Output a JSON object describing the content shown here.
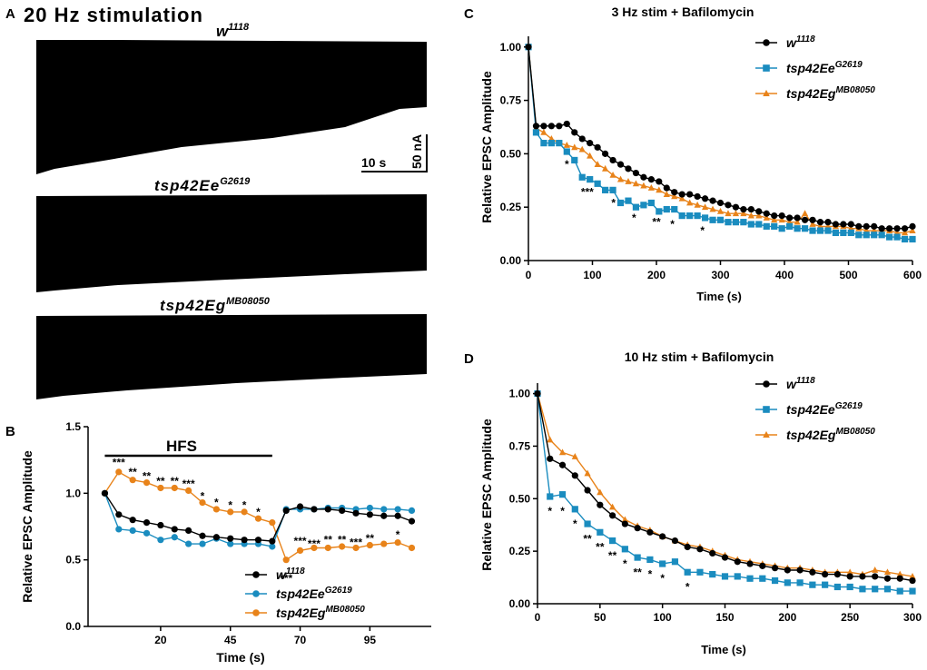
{
  "colors": {
    "w1118": "#000000",
    "tsp42Ee": "#1a8cbf",
    "tsp42Eg": "#e8831a",
    "trace": "#000000"
  },
  "panelA": {
    "letter": "A",
    "title": "20 Hz stimulation",
    "traces": [
      {
        "base": "w",
        "sup": "1118"
      },
      {
        "base": "tsp42Ee",
        "sup": "G2619"
      },
      {
        "base": "tsp42Eg",
        "sup": "MB08050"
      }
    ],
    "scalebar": {
      "time": "10 s",
      "amp": "50 nA"
    }
  },
  "chart_data": [
    {
      "id": "B",
      "letter": "B",
      "type": "line",
      "title": "",
      "annotation": "HFS",
      "hfs_range": [
        0,
        60
      ],
      "xlabel": "Time (s)",
      "ylabel": "Relative EPSC Amplitude",
      "xlim": [
        -6,
        117
      ],
      "ylim": [
        0,
        1.5
      ],
      "xticks": [
        20,
        45,
        70,
        95
      ],
      "yticks": [
        0.0,
        0.5,
        1.0,
        1.5
      ],
      "ytick_labels": [
        "0.0",
        "0.5",
        "1.0",
        "1.5"
      ],
      "legend": "bottom-right",
      "series": [
        {
          "name": "w",
          "sup": "1118",
          "color": "#000000",
          "marker": "circle",
          "x": [
            0,
            5,
            10,
            15,
            20,
            25,
            30,
            35,
            40,
            45,
            50,
            55,
            60,
            65,
            70,
            75,
            80,
            85,
            90,
            95,
            100,
            105,
            110
          ],
          "y": [
            1.0,
            0.84,
            0.8,
            0.78,
            0.76,
            0.73,
            0.72,
            0.68,
            0.67,
            0.66,
            0.65,
            0.65,
            0.64,
            0.87,
            0.9,
            0.88,
            0.88,
            0.87,
            0.85,
            0.84,
            0.83,
            0.83,
            0.79
          ]
        },
        {
          "name": "tsp42Ee",
          "sup": "G2619",
          "color": "#1a8cbf",
          "marker": "circle",
          "x": [
            0,
            5,
            10,
            15,
            20,
            25,
            30,
            35,
            40,
            45,
            50,
            55,
            60,
            65,
            70,
            75,
            80,
            85,
            90,
            95,
            100,
            105,
            110
          ],
          "y": [
            1.0,
            0.73,
            0.72,
            0.7,
            0.65,
            0.67,
            0.62,
            0.62,
            0.66,
            0.62,
            0.62,
            0.62,
            0.6,
            0.88,
            0.88,
            0.88,
            0.89,
            0.89,
            0.88,
            0.89,
            0.88,
            0.88,
            0.87
          ]
        },
        {
          "name": "tsp42Eg",
          "sup": "MB08050",
          "color": "#e8831a",
          "marker": "circle",
          "x": [
            0,
            5,
            10,
            15,
            20,
            25,
            30,
            35,
            40,
            45,
            50,
            55,
            60,
            65,
            70,
            75,
            80,
            85,
            90,
            95,
            100,
            105,
            110
          ],
          "y": [
            1.0,
            1.16,
            1.1,
            1.08,
            1.04,
            1.04,
            1.02,
            0.93,
            0.88,
            0.86,
            0.86,
            0.81,
            0.78,
            0.5,
            0.57,
            0.59,
            0.59,
            0.6,
            0.59,
            0.61,
            0.62,
            0.63,
            0.59
          ]
        }
      ],
      "significance": [
        {
          "x": 5,
          "y": 1.23,
          "text": "***"
        },
        {
          "x": 10,
          "y": 1.16,
          "text": "**"
        },
        {
          "x": 15,
          "y": 1.13,
          "text": "**"
        },
        {
          "x": 20,
          "y": 1.09,
          "text": "**"
        },
        {
          "x": 25,
          "y": 1.09,
          "text": "**"
        },
        {
          "x": 30,
          "y": 1.07,
          "text": "***"
        },
        {
          "x": 35,
          "y": 0.98,
          "text": "*"
        },
        {
          "x": 40,
          "y": 0.93,
          "text": "*"
        },
        {
          "x": 45,
          "y": 0.91,
          "text": "*"
        },
        {
          "x": 50,
          "y": 0.91,
          "text": "*"
        },
        {
          "x": 55,
          "y": 0.86,
          "text": "*"
        },
        {
          "x": 65,
          "y": 0.36,
          "text": "***"
        },
        {
          "x": 70,
          "y": 0.64,
          "text": "***"
        },
        {
          "x": 75,
          "y": 0.62,
          "text": "***"
        },
        {
          "x": 80,
          "y": 0.65,
          "text": "**"
        },
        {
          "x": 85,
          "y": 0.65,
          "text": "**"
        },
        {
          "x": 90,
          "y": 0.63,
          "text": "***"
        },
        {
          "x": 95,
          "y": 0.66,
          "text": "**"
        },
        {
          "x": 105,
          "y": 0.69,
          "text": "*"
        }
      ]
    },
    {
      "id": "C",
      "letter": "C",
      "type": "line",
      "title": "3 Hz stim + Bafilomycin",
      "xlabel": "Time (s)",
      "ylabel": "Relative EPSC Amplitude",
      "xlim": [
        0,
        600
      ],
      "ylim": [
        0,
        1.05
      ],
      "xticks": [
        0,
        100,
        200,
        300,
        400,
        500,
        600
      ],
      "yticks": [
        0.0,
        0.25,
        0.5,
        0.75,
        1.0
      ],
      "ytick_labels": [
        "0.00",
        "0.25",
        "0.50",
        "0.75",
        "1.00"
      ],
      "legend": "top-right",
      "series": [
        {
          "name": "w",
          "sup": "1118",
          "color": "#000000",
          "marker": "circle",
          "x": [
            0,
            12,
            24,
            36,
            48,
            60,
            72,
            84,
            96,
            108,
            120,
            132,
            144,
            156,
            168,
            180,
            192,
            204,
            216,
            228,
            240,
            252,
            264,
            276,
            288,
            300,
            312,
            324,
            336,
            348,
            360,
            372,
            384,
            396,
            408,
            420,
            432,
            444,
            456,
            468,
            480,
            492,
            504,
            516,
            528,
            540,
            552,
            564,
            576,
            588,
            600
          ],
          "y": [
            1.0,
            0.63,
            0.63,
            0.63,
            0.63,
            0.64,
            0.6,
            0.57,
            0.55,
            0.53,
            0.5,
            0.47,
            0.45,
            0.43,
            0.41,
            0.39,
            0.38,
            0.37,
            0.34,
            0.32,
            0.31,
            0.31,
            0.3,
            0.29,
            0.28,
            0.27,
            0.26,
            0.25,
            0.24,
            0.24,
            0.23,
            0.22,
            0.21,
            0.21,
            0.2,
            0.2,
            0.19,
            0.19,
            0.18,
            0.18,
            0.17,
            0.17,
            0.17,
            0.16,
            0.16,
            0.16,
            0.15,
            0.15,
            0.15,
            0.15,
            0.16
          ]
        },
        {
          "name": "tsp42Ee",
          "sup": "G2619",
          "color": "#1a8cbf",
          "marker": "square",
          "x": [
            0,
            12,
            24,
            36,
            48,
            60,
            72,
            84,
            96,
            108,
            120,
            132,
            144,
            156,
            168,
            180,
            192,
            204,
            216,
            228,
            240,
            252,
            264,
            276,
            288,
            300,
            312,
            324,
            336,
            348,
            360,
            372,
            384,
            396,
            408,
            420,
            432,
            444,
            456,
            468,
            480,
            492,
            504,
            516,
            528,
            540,
            552,
            564,
            576,
            588,
            600
          ],
          "y": [
            1.0,
            0.6,
            0.55,
            0.55,
            0.55,
            0.51,
            0.47,
            0.39,
            0.38,
            0.36,
            0.33,
            0.33,
            0.27,
            0.28,
            0.25,
            0.26,
            0.27,
            0.23,
            0.24,
            0.24,
            0.21,
            0.21,
            0.21,
            0.2,
            0.19,
            0.19,
            0.18,
            0.18,
            0.18,
            0.17,
            0.17,
            0.16,
            0.16,
            0.15,
            0.16,
            0.15,
            0.15,
            0.14,
            0.14,
            0.14,
            0.13,
            0.13,
            0.13,
            0.12,
            0.12,
            0.12,
            0.12,
            0.11,
            0.11,
            0.1,
            0.1
          ]
        },
        {
          "name": "tsp42Eg",
          "sup": "MB08050",
          "color": "#e8831a",
          "marker": "triangle",
          "x": [
            0,
            12,
            24,
            36,
            48,
            60,
            72,
            84,
            96,
            108,
            120,
            132,
            144,
            156,
            168,
            180,
            192,
            204,
            216,
            228,
            240,
            252,
            264,
            276,
            288,
            300,
            312,
            324,
            336,
            348,
            360,
            372,
            384,
            396,
            408,
            420,
            432,
            444,
            456,
            468,
            480,
            492,
            504,
            516,
            528,
            540,
            552,
            564,
            576,
            588,
            600
          ],
          "y": [
            1.0,
            0.62,
            0.6,
            0.57,
            0.55,
            0.54,
            0.53,
            0.52,
            0.49,
            0.45,
            0.43,
            0.4,
            0.38,
            0.37,
            0.36,
            0.35,
            0.34,
            0.33,
            0.31,
            0.3,
            0.29,
            0.27,
            0.26,
            0.25,
            0.24,
            0.23,
            0.22,
            0.22,
            0.22,
            0.21,
            0.21,
            0.2,
            0.19,
            0.19,
            0.18,
            0.18,
            0.22,
            0.17,
            0.16,
            0.16,
            0.16,
            0.16,
            0.15,
            0.15,
            0.14,
            0.14,
            0.14,
            0.14,
            0.13,
            0.13,
            0.14
          ]
        }
      ],
      "significance": [
        {
          "x": 60,
          "y": 0.45,
          "text": "*"
        },
        {
          "x": 92,
          "y": 0.32,
          "text": "***"
        },
        {
          "x": 133,
          "y": 0.27,
          "text": "*"
        },
        {
          "x": 165,
          "y": 0.2,
          "text": "*"
        },
        {
          "x": 200,
          "y": 0.18,
          "text": "**"
        },
        {
          "x": 225,
          "y": 0.17,
          "text": "*"
        },
        {
          "x": 272,
          "y": 0.14,
          "text": "*"
        }
      ]
    },
    {
      "id": "D",
      "letter": "D",
      "type": "line",
      "title": "10 Hz stim + Bafilomycin",
      "xlabel": "Time (s)",
      "ylabel": "Relative EPSC Amplitude",
      "xlim": [
        0,
        300
      ],
      "ylim": [
        0,
        1.05
      ],
      "xticks": [
        0,
        50,
        100,
        150,
        200,
        250,
        300
      ],
      "yticks": [
        0.0,
        0.25,
        0.5,
        0.75,
        1.0
      ],
      "ytick_labels": [
        "0.00",
        "0.25",
        "0.50",
        "0.75",
        "1.00"
      ],
      "legend": "top-right",
      "series": [
        {
          "name": "w",
          "sup": "1118",
          "color": "#000000",
          "marker": "circle",
          "x": [
            0,
            10,
            20,
            30,
            40,
            50,
            60,
            70,
            80,
            90,
            100,
            110,
            120,
            130,
            140,
            150,
            160,
            170,
            180,
            190,
            200,
            210,
            220,
            230,
            240,
            250,
            260,
            270,
            280,
            290,
            300
          ],
          "y": [
            1.0,
            0.69,
            0.66,
            0.61,
            0.54,
            0.47,
            0.42,
            0.38,
            0.36,
            0.34,
            0.32,
            0.3,
            0.27,
            0.26,
            0.24,
            0.22,
            0.2,
            0.19,
            0.18,
            0.17,
            0.16,
            0.16,
            0.15,
            0.14,
            0.14,
            0.13,
            0.13,
            0.13,
            0.12,
            0.12,
            0.11
          ]
        },
        {
          "name": "tsp42Ee",
          "sup": "G2619",
          "color": "#1a8cbf",
          "marker": "square",
          "x": [
            0,
            10,
            20,
            30,
            40,
            50,
            60,
            70,
            80,
            90,
            100,
            110,
            120,
            130,
            140,
            150,
            160,
            170,
            180,
            190,
            200,
            210,
            220,
            230,
            240,
            250,
            260,
            270,
            280,
            290,
            300
          ],
          "y": [
            1.0,
            0.51,
            0.52,
            0.45,
            0.38,
            0.34,
            0.3,
            0.26,
            0.22,
            0.21,
            0.19,
            0.2,
            0.15,
            0.15,
            0.14,
            0.13,
            0.13,
            0.12,
            0.12,
            0.11,
            0.1,
            0.1,
            0.09,
            0.09,
            0.08,
            0.08,
            0.07,
            0.07,
            0.07,
            0.06,
            0.06
          ]
        },
        {
          "name": "tsp42Eg",
          "sup": "MB08050",
          "color": "#e8831a",
          "marker": "triangle",
          "x": [
            0,
            10,
            20,
            30,
            40,
            50,
            60,
            70,
            80,
            90,
            100,
            110,
            120,
            130,
            140,
            150,
            160,
            170,
            180,
            190,
            200,
            210,
            220,
            230,
            240,
            250,
            260,
            270,
            280,
            290,
            300
          ],
          "y": [
            1.0,
            0.78,
            0.72,
            0.7,
            0.62,
            0.53,
            0.46,
            0.4,
            0.37,
            0.35,
            0.32,
            0.3,
            0.28,
            0.27,
            0.25,
            0.23,
            0.21,
            0.2,
            0.19,
            0.18,
            0.17,
            0.17,
            0.16,
            0.15,
            0.15,
            0.15,
            0.14,
            0.16,
            0.15,
            0.14,
            0.13
          ]
        }
      ],
      "significance": [
        {
          "x": 10,
          "y": 0.44,
          "text": "*"
        },
        {
          "x": 20,
          "y": 0.44,
          "text": "*"
        },
        {
          "x": 30,
          "y": 0.38,
          "text": "*"
        },
        {
          "x": 40,
          "y": 0.31,
          "text": "**"
        },
        {
          "x": 50,
          "y": 0.27,
          "text": "**"
        },
        {
          "x": 60,
          "y": 0.23,
          "text": "**"
        },
        {
          "x": 70,
          "y": 0.19,
          "text": "*"
        },
        {
          "x": 80,
          "y": 0.15,
          "text": "**"
        },
        {
          "x": 90,
          "y": 0.14,
          "text": "*"
        },
        {
          "x": 100,
          "y": 0.12,
          "text": "*"
        },
        {
          "x": 120,
          "y": 0.08,
          "text": "*"
        }
      ]
    }
  ]
}
